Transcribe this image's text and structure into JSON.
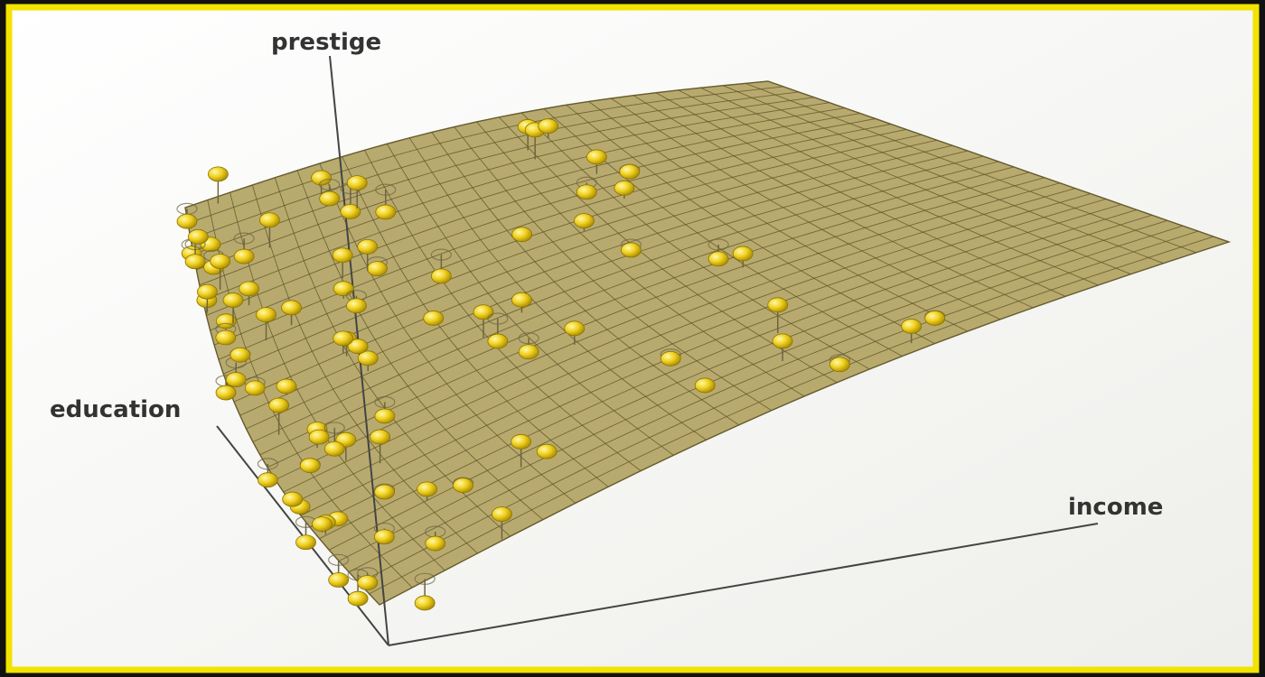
{
  "axes": {
    "vertical": "prestige",
    "left": "education",
    "right": "income"
  }
}
